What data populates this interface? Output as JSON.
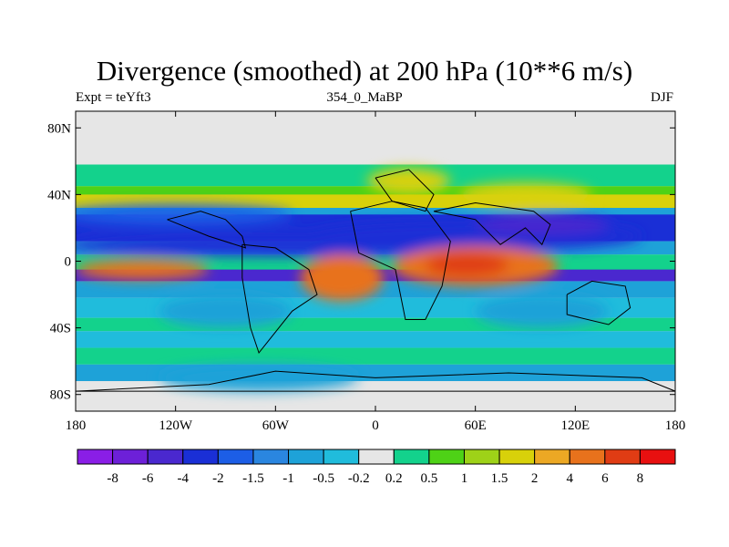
{
  "chart_data": {
    "type": "heatmap",
    "title": "Divergence (smoothed) at 200 hPa (10**6 m/s)",
    "subtitle_left": "Expt = teYft3",
    "subtitle_center": "354_0_MaBP",
    "subtitle_right": "DJF",
    "x_ticks": [
      "180",
      "120W",
      "60W",
      "0",
      "60E",
      "120E",
      "180"
    ],
    "x_tick_lons": [
      -180,
      -120,
      -60,
      0,
      60,
      120,
      180
    ],
    "y_ticks": [
      "80N",
      "40N",
      "0",
      "40S",
      "80S"
    ],
    "y_tick_lats": [
      80,
      40,
      0,
      -40,
      -80
    ],
    "xlim": [
      -180,
      180
    ],
    "ylim": [
      -90,
      90
    ],
    "colorbar": {
      "labels": [
        "-8",
        "-6",
        "-4",
        "-2",
        "-1.5",
        "-1",
        "-0.5",
        "-0.2",
        "0.2",
        "0.5",
        "1",
        "1.5",
        "2",
        "4",
        "6",
        "8"
      ],
      "colors": [
        "#8a1ee6",
        "#6d20d8",
        "#4a28cf",
        "#1a2fd6",
        "#1c5ee6",
        "#2a86e0",
        "#1ea2d8",
        "#20bcdc",
        "#e6e6e6",
        "#13d28c",
        "#4ed216",
        "#9ed218",
        "#d8d10a",
        "#eca824",
        "#e8721c",
        "#e03c14",
        "#e81010"
      ]
    },
    "regions": [
      {
        "lon": -50,
        "lat": 10,
        "rlon": 140,
        "rlat": 7,
        "level": 3
      },
      {
        "lon": 60,
        "lat": 15,
        "rlon": 100,
        "rlat": 9,
        "level": 3
      },
      {
        "lon": 100,
        "lat": 22,
        "rlon": 40,
        "rlat": 6,
        "level": 2
      },
      {
        "lon": -120,
        "lat": 28,
        "rlon": 70,
        "rlat": 6,
        "level": 4
      },
      {
        "lon": 20,
        "lat": 48,
        "rlon": 25,
        "rlat": 8,
        "level": 12
      },
      {
        "lon": 90,
        "lat": 40,
        "rlon": 40,
        "rlat": 7,
        "level": 12
      },
      {
        "lon": -140,
        "lat": -5,
        "rlon": 40,
        "rlat": 6,
        "level": 14
      },
      {
        "lon": -20,
        "lat": -10,
        "rlon": 25,
        "rlat": 14,
        "level": 14
      },
      {
        "lon": 60,
        "lat": -3,
        "rlon": 50,
        "rlat": 12,
        "level": 14
      },
      {
        "lon": 55,
        "lat": -2,
        "rlon": 25,
        "rlat": 7,
        "level": 15
      },
      {
        "lon": -90,
        "lat": -30,
        "rlon": 40,
        "rlat": 10,
        "level": 6
      },
      {
        "lon": 100,
        "lat": -30,
        "rlon": 40,
        "rlat": 10,
        "level": 6
      },
      {
        "lon": -70,
        "lat": -70,
        "rlon": 60,
        "rlat": 8,
        "level": 6
      }
    ],
    "land": [
      [
        [
          -125,
          25
        ],
        [
          -105,
          30
        ],
        [
          -90,
          25
        ],
        [
          -80,
          15
        ],
        [
          -78,
          8
        ],
        [
          -100,
          15
        ],
        [
          -125,
          25
        ]
      ],
      [
        [
          -80,
          10
        ],
        [
          -60,
          8
        ],
        [
          -40,
          -5
        ],
        [
          -35,
          -20
        ],
        [
          -50,
          -30
        ],
        [
          -70,
          -55
        ],
        [
          -75,
          -40
        ],
        [
          -80,
          -10
        ],
        [
          -80,
          10
        ]
      ],
      [
        [
          -15,
          30
        ],
        [
          10,
          36
        ],
        [
          30,
          32
        ],
        [
          45,
          12
        ],
        [
          40,
          -15
        ],
        [
          30,
          -35
        ],
        [
          18,
          -35
        ],
        [
          12,
          -5
        ],
        [
          -10,
          5
        ],
        [
          -15,
          30
        ]
      ],
      [
        [
          0,
          50
        ],
        [
          20,
          55
        ],
        [
          35,
          40
        ],
        [
          30,
          30
        ],
        [
          10,
          36
        ],
        [
          0,
          50
        ]
      ],
      [
        [
          35,
          30
        ],
        [
          60,
          25
        ],
        [
          75,
          10
        ],
        [
          90,
          20
        ],
        [
          100,
          10
        ],
        [
          105,
          22
        ],
        [
          95,
          30
        ],
        [
          60,
          35
        ],
        [
          35,
          30
        ]
      ],
      [
        [
          115,
          -20
        ],
        [
          130,
          -12
        ],
        [
          150,
          -15
        ],
        [
          153,
          -28
        ],
        [
          140,
          -38
        ],
        [
          115,
          -32
        ],
        [
          115,
          -20
        ]
      ],
      [
        [
          -180,
          -78
        ],
        [
          -100,
          -74
        ],
        [
          -60,
          -66
        ],
        [
          0,
          -70
        ],
        [
          80,
          -67
        ],
        [
          160,
          -70
        ],
        [
          180,
          -78
        ],
        [
          -180,
          -78
        ]
      ]
    ]
  }
}
